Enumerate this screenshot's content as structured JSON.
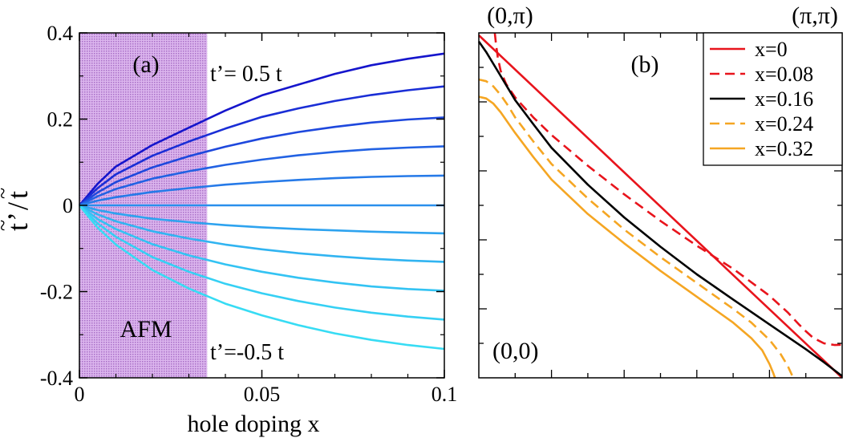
{
  "chart_data": [
    {
      "type": "line",
      "panel_label": "(a)",
      "xlabel": "hole doping x",
      "ylabel_main": "t",
      "ylabel_prime": "’",
      "ylabel_sep": "/",
      "ylabel_den": "t",
      "ylabel_tilde": "~",
      "xlim": [
        0,
        0.1
      ],
      "ylim": [
        -0.4,
        0.4
      ],
      "xticks": [
        0,
        0.05,
        0.1
      ],
      "xtick_labels": [
        "0",
        "0.05",
        "0.1"
      ],
      "yticks": [
        -0.4,
        -0.2,
        0,
        0.2,
        0.4
      ],
      "ytick_labels": [
        "-0.4",
        "-0.2",
        "0",
        "0.2",
        "0.4"
      ],
      "region": {
        "label": "AFM",
        "x_range": [
          0,
          0.035
        ],
        "color": "#c58ee0"
      },
      "annotations": [
        "t’= 0.5 t",
        "t’=-0.5 t"
      ],
      "x": [
        0,
        0.005,
        0.01,
        0.02,
        0.03,
        0.04,
        0.05,
        0.06,
        0.07,
        0.08,
        0.09,
        0.1
      ],
      "series": [
        {
          "color": "#1515cc",
          "values": [
            0,
            0.05,
            0.09,
            0.14,
            0.18,
            0.22,
            0.255,
            0.28,
            0.305,
            0.325,
            0.34,
            0.352
          ]
        },
        {
          "color": "#1a2ed6",
          "values": [
            0,
            0.04,
            0.072,
            0.115,
            0.148,
            0.178,
            0.205,
            0.225,
            0.242,
            0.256,
            0.267,
            0.276
          ]
        },
        {
          "color": "#1e48dd",
          "values": [
            0,
            0.03,
            0.054,
            0.088,
            0.114,
            0.136,
            0.155,
            0.17,
            0.182,
            0.192,
            0.199,
            0.204
          ]
        },
        {
          "color": "#2262e3",
          "values": [
            0,
            0.021,
            0.038,
            0.062,
            0.079,
            0.094,
            0.106,
            0.116,
            0.124,
            0.13,
            0.134,
            0.137
          ]
        },
        {
          "color": "#267ae8",
          "values": [
            0,
            0.011,
            0.019,
            0.031,
            0.04,
            0.048,
            0.054,
            0.059,
            0.063,
            0.066,
            0.068,
            0.069
          ]
        },
        {
          "color": "#2a8fec",
          "values": [
            0,
            0,
            0,
            0,
            0,
            0,
            0,
            0,
            0,
            0,
            0,
            0
          ]
        },
        {
          "color": "#2ea3ef",
          "values": [
            0,
            -0.011,
            -0.019,
            -0.031,
            -0.039,
            -0.046,
            -0.051,
            -0.055,
            -0.058,
            -0.061,
            -0.063,
            -0.065
          ]
        },
        {
          "color": "#31b4f1",
          "values": [
            0,
            -0.021,
            -0.037,
            -0.06,
            -0.077,
            -0.091,
            -0.102,
            -0.111,
            -0.118,
            -0.124,
            -0.128,
            -0.131
          ]
        },
        {
          "color": "#33c3f3",
          "values": [
            0,
            -0.032,
            -0.055,
            -0.09,
            -0.116,
            -0.137,
            -0.154,
            -0.168,
            -0.179,
            -0.188,
            -0.194,
            -0.198
          ]
        },
        {
          "color": "#35d0f4",
          "values": [
            0,
            -0.042,
            -0.073,
            -0.12,
            -0.154,
            -0.182,
            -0.204,
            -0.222,
            -0.237,
            -0.249,
            -0.258,
            -0.265
          ]
        },
        {
          "color": "#37dcf4",
          "values": [
            0,
            -0.052,
            -0.091,
            -0.15,
            -0.193,
            -0.228,
            -0.255,
            -0.278,
            -0.297,
            -0.312,
            -0.324,
            -0.333
          ]
        }
      ]
    },
    {
      "type": "line",
      "panel_label": "(b)",
      "corner_labels": {
        "top_left": "(0,π)",
        "top_right": "(π,π)",
        "bottom_left": "(0,0)"
      },
      "xlim": [
        0,
        1
      ],
      "ylim": [
        0,
        1
      ],
      "legend": "top-right",
      "series": [
        {
          "name": "x=0",
          "color": "#e8141c",
          "dash": "solid",
          "x": [
            0,
            1
          ],
          "y": [
            0.993,
            0
          ]
        },
        {
          "name": "x=0.08",
          "color": "#e8141c",
          "dash": "dashed",
          "x": [
            0.044,
            0.047,
            0.052,
            0.06,
            0.075,
            0.1,
            0.15,
            0.2,
            0.3,
            0.4,
            0.5,
            0.6,
            0.7,
            0.8,
            0.85,
            0.88,
            0.9,
            0.92,
            0.95,
            0.98,
            1.0
          ],
          "y": [
            1.0,
            0.97,
            0.93,
            0.89,
            0.852,
            0.813,
            0.755,
            0.704,
            0.615,
            0.532,
            0.455,
            0.383,
            0.316,
            0.238,
            0.19,
            0.156,
            0.135,
            0.116,
            0.1,
            0.095,
            0.096
          ]
        },
        {
          "name": "x=0.16",
          "color": "#000000",
          "dash": "solid",
          "x": [
            0,
            0.02,
            0.05,
            0.1,
            0.15,
            0.2,
            0.3,
            0.4,
            0.5,
            0.6,
            0.7,
            0.8,
            0.9,
            0.95,
            1.0
          ],
          "y": [
            0.975,
            0.945,
            0.893,
            0.805,
            0.735,
            0.667,
            0.56,
            0.465,
            0.38,
            0.3,
            0.227,
            0.155,
            0.083,
            0.045,
            0.005
          ]
        },
        {
          "name": "x=0.24",
          "color": "#f5a623",
          "dash": "dashed",
          "x": [
            0,
            0.02,
            0.04,
            0.06,
            0.08,
            0.1,
            0.15,
            0.2,
            0.3,
            0.4,
            0.5,
            0.6,
            0.7,
            0.75,
            0.8,
            0.83,
            0.85,
            0.86,
            0.865
          ],
          "y": [
            0.865,
            0.86,
            0.845,
            0.82,
            0.79,
            0.755,
            0.685,
            0.62,
            0.52,
            0.43,
            0.35,
            0.275,
            0.2,
            0.16,
            0.11,
            0.07,
            0.035,
            0.012,
            0.0
          ]
        },
        {
          "name": "x=0.32",
          "color": "#f5a623",
          "dash": "solid",
          "x": [
            0,
            0.02,
            0.04,
            0.06,
            0.08,
            0.1,
            0.15,
            0.2,
            0.3,
            0.4,
            0.5,
            0.6,
            0.7,
            0.75,
            0.78,
            0.8,
            0.81,
            0.815
          ],
          "y": [
            0.815,
            0.81,
            0.795,
            0.77,
            0.74,
            0.71,
            0.64,
            0.575,
            0.475,
            0.39,
            0.31,
            0.235,
            0.16,
            0.115,
            0.08,
            0.04,
            0.015,
            0.0
          ]
        }
      ]
    }
  ]
}
